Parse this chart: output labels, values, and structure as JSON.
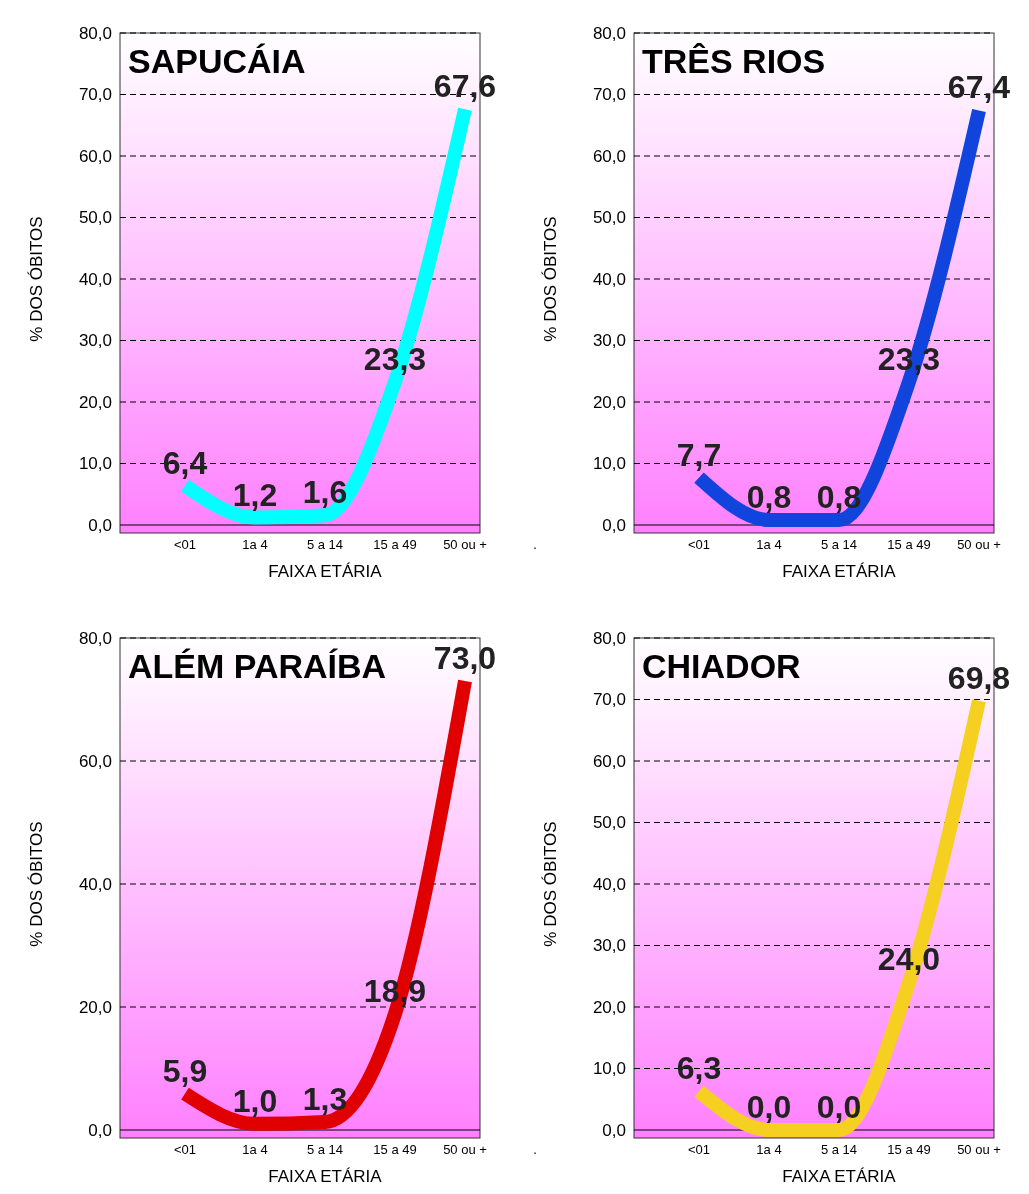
{
  "chart_data": [
    {
      "type": "line",
      "title": "SAPUCÁIA",
      "xlabel": "FAIXA ETÁRIA",
      "ylabel": "% DOS ÓBITOS",
      "categories": [
        "<01",
        "1a 4",
        "5 a 14",
        "15 a 49",
        "50 ou +",
        "."
      ],
      "series": [
        {
          "color": "#00ffff",
          "values": [
            6.4,
            1.2,
            1.6,
            23.3,
            67.6,
            null
          ],
          "value_labels": [
            "6,4",
            "1,2",
            "1,6",
            "23,3",
            "67,6",
            null
          ]
        }
      ],
      "ylim": [
        0,
        80
      ],
      "yticks": [
        {
          "value": 0,
          "label": "0,0"
        },
        {
          "value": 10,
          "label": "10,0"
        },
        {
          "value": 20,
          "label": "20,0"
        },
        {
          "value": 30,
          "label": "30,0"
        },
        {
          "value": 40,
          "label": "40,0"
        },
        {
          "value": 50,
          "label": "50,0"
        },
        {
          "value": 60,
          "label": "60,0"
        },
        {
          "value": 70,
          "label": "70,0"
        },
        {
          "value": 80,
          "label": "80,0"
        }
      ],
      "grid": "y",
      "marker": "none",
      "line_style": "solid"
    },
    {
      "type": "line",
      "title": "TRÊS RIOS",
      "xlabel": "FAIXA ETÁRIA",
      "ylabel": "% DOS ÓBITOS",
      "categories": [
        "<01",
        "1a 4",
        "5 a 14",
        "15 a 49",
        "50 ou +"
      ],
      "series": [
        {
          "color": "#1144dd",
          "values": [
            7.7,
            0.8,
            0.8,
            23.3,
            67.4
          ],
          "value_labels": [
            "7,7",
            "0,8",
            "0,8",
            "23,3",
            "67,4"
          ]
        }
      ],
      "ylim": [
        0,
        80
      ],
      "yticks": [
        {
          "value": 0,
          "label": "0,0"
        },
        {
          "value": 10,
          "label": "10,0"
        },
        {
          "value": 20,
          "label": "20,0"
        },
        {
          "value": 30,
          "label": "30,0"
        },
        {
          "value": 40,
          "label": "40,0"
        },
        {
          "value": 50,
          "label": "50,0"
        },
        {
          "value": 60,
          "label": "60,0"
        },
        {
          "value": 70,
          "label": "70,0"
        },
        {
          "value": 80,
          "label": "80,0"
        }
      ],
      "grid": "y",
      "marker": "none",
      "line_style": "solid"
    },
    {
      "type": "line",
      "title": "ALÉM PARAÍBA",
      "xlabel": "FAIXA ETÁRIA",
      "ylabel": "% DOS ÓBITOS",
      "categories": [
        "<01",
        "1a 4",
        "5 a 14",
        "15 a 49",
        "50 ou +",
        "."
      ],
      "series": [
        {
          "color": "#e00000",
          "values": [
            5.9,
            1.0,
            1.3,
            18.9,
            73.0,
            null
          ],
          "value_labels": [
            "5,9",
            "1,0",
            "1,3",
            "18,9",
            "73,0",
            null
          ]
        }
      ],
      "ylim": [
        0,
        80
      ],
      "yticks": [
        {
          "value": 0,
          "label": "0,0"
        },
        {
          "value": 20,
          "label": "20,0"
        },
        {
          "value": 40,
          "label": "40,0"
        },
        {
          "value": 60,
          "label": "60,0"
        },
        {
          "value": 80,
          "label": "80,0"
        }
      ],
      "grid": "y",
      "marker": "none",
      "line_style": "solid"
    },
    {
      "type": "line",
      "title": "CHIADOR",
      "xlabel": "FAIXA ETÁRIA",
      "ylabel": "% DOS ÓBITOS",
      "categories": [
        "<01",
        "1a 4",
        "5 a 14",
        "15 a 49",
        "50 ou +"
      ],
      "series": [
        {
          "color": "#f5d020",
          "values": [
            6.3,
            0.0,
            0.0,
            24.0,
            69.8
          ],
          "value_labels": [
            "6,3",
            "0,0",
            "0,0",
            "24,0",
            "69,8"
          ]
        }
      ],
      "ylim": [
        0,
        80
      ],
      "yticks": [
        {
          "value": 0,
          "label": "0,0"
        },
        {
          "value": 10,
          "label": "10,0"
        },
        {
          "value": 20,
          "label": "20,0"
        },
        {
          "value": 30,
          "label": "30,0"
        },
        {
          "value": 40,
          "label": "40,0"
        },
        {
          "value": 50,
          "label": "50,0"
        },
        {
          "value": 60,
          "label": "60,0"
        },
        {
          "value": 70,
          "label": "70,0"
        },
        {
          "value": 80,
          "label": "80,0"
        }
      ],
      "grid": "y",
      "marker": "none",
      "line_style": "solid"
    }
  ]
}
